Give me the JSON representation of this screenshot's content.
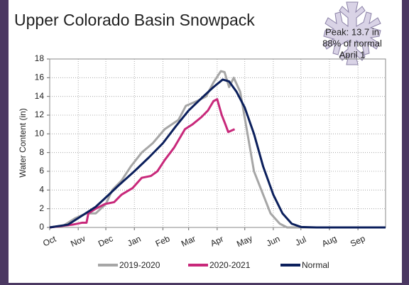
{
  "chart_data": {
    "type": "line",
    "title": "Upper Colorado Basin Snowpack",
    "annotations": [
      "Peak: 13.7 in",
      "88% of normal",
      "April 1"
    ],
    "ylabel": "Water Content (in)",
    "xlim": [
      0,
      365
    ],
    "xticks": [
      {
        "value": 0,
        "label": "Oct"
      },
      {
        "value": 31,
        "label": "Nov"
      },
      {
        "value": 61,
        "label": "Dec"
      },
      {
        "value": 92,
        "label": "Jan"
      },
      {
        "value": 123,
        "label": "Feb"
      },
      {
        "value": 151,
        "label": "Mar"
      },
      {
        "value": 182,
        "label": "Apr"
      },
      {
        "value": 212,
        "label": "May"
      },
      {
        "value": 243,
        "label": "Jun"
      },
      {
        "value": 273,
        "label": "Jul"
      },
      {
        "value": 304,
        "label": "Aug"
      },
      {
        "value": 335,
        "label": "Sep"
      }
    ],
    "ylim": [
      0,
      18
    ],
    "yticks": [
      0,
      2,
      4,
      6,
      8,
      10,
      12,
      14,
      16,
      18
    ],
    "grid": true,
    "legend": "bottom",
    "series": [
      {
        "name": "2019-2020",
        "color": "#a6a6a6",
        "x": [
          0,
          15,
          28,
          40,
          50,
          61,
          68,
          78,
          88,
          100,
          112,
          125,
          140,
          148,
          160,
          170,
          178,
          186,
          190,
          195,
          200,
          207,
          215,
          222,
          232,
          240,
          250,
          258,
          365
        ],
        "values": [
          0,
          0.2,
          1,
          1.5,
          1.5,
          2.5,
          4,
          5,
          6.5,
          8,
          9,
          10.5,
          11.5,
          13,
          13.5,
          14,
          15.5,
          16.7,
          16.6,
          15,
          16,
          14.5,
          10,
          6,
          3.5,
          1.5,
          0.4,
          0,
          0
        ]
      },
      {
        "name": "2020-2021",
        "color": "#c8287a",
        "x": [
          0,
          25,
          35,
          40,
          42,
          50,
          60,
          70,
          78,
          90,
          100,
          110,
          117,
          125,
          135,
          147,
          155,
          165,
          172,
          178,
          182,
          187,
          191,
          194,
          201
        ],
        "values": [
          0,
          0.3,
          0.5,
          0.5,
          1.5,
          2,
          2.5,
          2.7,
          3.5,
          4.2,
          5.3,
          5.5,
          6,
          7.2,
          8.5,
          10.5,
          11,
          11.8,
          12.5,
          13.5,
          13.7,
          12,
          11,
          10.2,
          10.5
        ]
      },
      {
        "name": "Normal",
        "color": "#0b1f5c",
        "x": [
          0,
          20,
          31,
          50,
          61,
          75,
          92,
          108,
          123,
          137,
          151,
          167,
          178,
          188,
          195,
          203,
          212,
          222,
          232,
          243,
          253,
          263,
          273,
          290,
          365
        ],
        "values": [
          0,
          0.3,
          1,
          2.2,
          3.2,
          4.5,
          6,
          7.5,
          9,
          10.8,
          12.5,
          14,
          15,
          15.8,
          15.6,
          14.5,
          12.8,
          10,
          6.5,
          3.5,
          1.5,
          0.4,
          0.05,
          0,
          0
        ]
      }
    ]
  }
}
